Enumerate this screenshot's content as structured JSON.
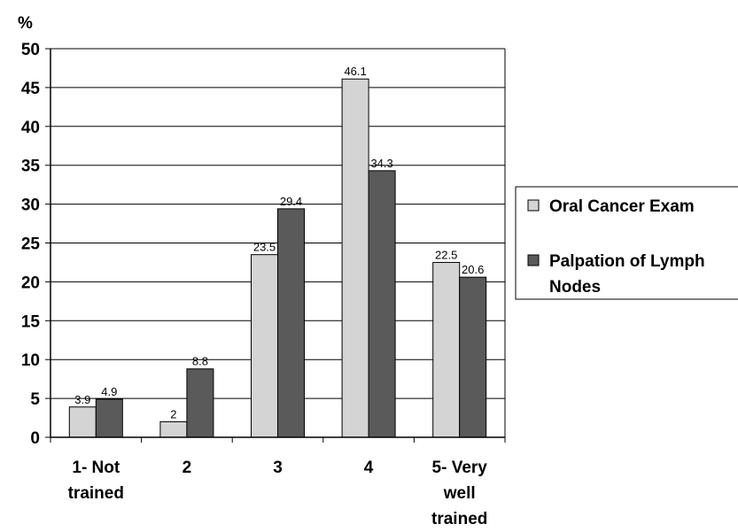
{
  "chart_data": {
    "type": "bar",
    "title": "",
    "ylabel": "%",
    "xlabel": "",
    "categories": [
      [
        "1- Not",
        "trained"
      ],
      [
        "2"
      ],
      [
        "3"
      ],
      [
        "4"
      ],
      [
        "5- Very",
        "well",
        "trained"
      ]
    ],
    "series": [
      {
        "name": "Oral Cancer Exam",
        "color": "#d4d4d4",
        "values": [
          3.9,
          2,
          23.5,
          46.1,
          22.5
        ],
        "labels": [
          "3.9",
          "2",
          "23.5",
          "46.1",
          "22.5"
        ]
      },
      {
        "name": "Palpation of Lymph Nodes",
        "color": "#5a5a5a",
        "values": [
          4.9,
          8.8,
          29.4,
          34.3,
          20.6
        ],
        "labels": [
          "4.9",
          "8.8",
          "29.4",
          "34.3",
          "20.6"
        ]
      }
    ],
    "ylim": [
      0,
      50
    ],
    "yticks": [
      0,
      5,
      10,
      15,
      20,
      25,
      30,
      35,
      40,
      45,
      50
    ],
    "grid": true,
    "legend": {
      "position": "right",
      "entries": [
        [
          "Oral Cancer Exam"
        ],
        [
          "Palpation of Lymph",
          "Nodes"
        ]
      ]
    }
  }
}
